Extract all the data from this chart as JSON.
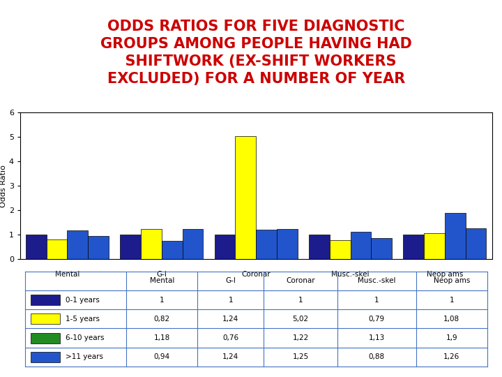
{
  "title": "ODDS RATIOS FOR FIVE DIAGNOSTIC\nGROUPS AMONG PEOPLE HAVING HAD\n  SHIFTWORK (EX-SHIFT WORKERS\nEXCLUDED) FOR A NUMBER OF YEAR",
  "title_color": "#cc0000",
  "title_fontsize": 15,
  "ylabel": "Odds Ratio",
  "ylim": [
    0,
    6
  ],
  "yticks": [
    0,
    1,
    2,
    3,
    4,
    5,
    6
  ],
  "groups": [
    "Mental",
    "G-I",
    "Coronar",
    "Musc.-skel",
    "Neop ams"
  ],
  "series_labels": [
    "0-1 years",
    "1-5 years",
    "6-10 years",
    ">11 years"
  ],
  "bar_colors": [
    "#1C1C8C",
    "#FFFF00",
    "#2255CC",
    "#2255CC"
  ],
  "data": {
    "0-1 years": [
      1.0,
      1.0,
      1.0,
      1.0,
      1.0
    ],
    "1-5 years": [
      0.82,
      1.24,
      5.02,
      0.79,
      1.08
    ],
    "6-10 years": [
      1.18,
      0.76,
      1.22,
      1.13,
      1.9
    ],
    ">11 years": [
      0.94,
      1.24,
      1.25,
      0.88,
      1.26
    ]
  },
  "legend_colors": [
    "#1C1C8C",
    "#FFFF00",
    "#228B22",
    "#2255CC"
  ],
  "table_data": [
    [
      "",
      "Mental",
      "G-I",
      "Coronar",
      "Musc.-skel",
      "Neop ams"
    ],
    [
      "0-1 years",
      "1",
      "1",
      "1",
      "1",
      "1"
    ],
    [
      "1-5 years",
      "0,82",
      "1,24",
      "5,02",
      "0,79",
      "1,08"
    ],
    [
      "6-10 years",
      "1,18",
      "0,76",
      "1,22",
      "1,13",
      "1,9"
    ],
    [
      ">11 years",
      "0,94",
      "1,24",
      "1,25",
      "0,88",
      "1,26"
    ]
  ],
  "table_border_color": "#4472C4",
  "background_color": "#ffffff",
  "bar_width": 0.22,
  "chart_border_color": "#000000"
}
